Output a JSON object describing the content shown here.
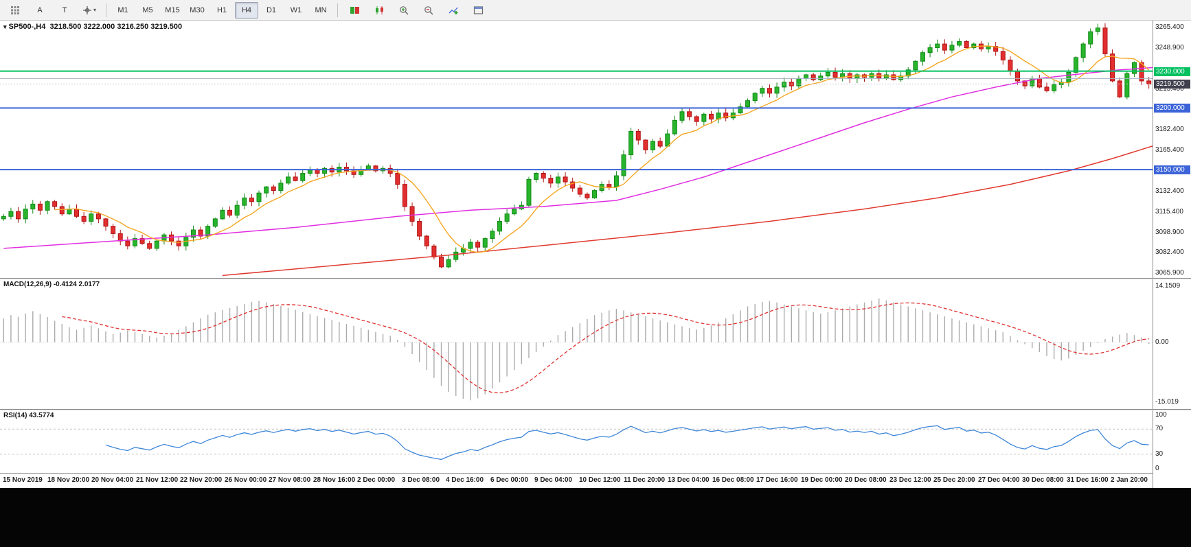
{
  "toolbar": {
    "buttons": {
      "a_label": "A",
      "t_label": "T"
    },
    "timeframes": [
      "M1",
      "M5",
      "M15",
      "M30",
      "H1",
      "H4",
      "D1",
      "W1",
      "MN"
    ],
    "active_timeframe": "H4",
    "icons": [
      "grid-icon",
      "cursor-arrow-icon",
      "text-icon",
      "crosshair-icon",
      "chevron-down-icon",
      "new-order-icon",
      "chart-candles-icon",
      "zoom-in-icon",
      "zoom-out-icon",
      "indicators-icon",
      "templates-icon"
    ]
  },
  "chart": {
    "title_symbol": "SP500-,H4",
    "title_ohlc": "3218.500 3222.000 3216.250 3219.500"
  },
  "chart_data": {
    "type": "candlestick",
    "symbol": "SP500-",
    "timeframe": "H4",
    "main": {
      "price_min": 3062,
      "price_max": 3271,
      "axis_ticks": [
        3265.4,
        3248.9,
        3215.4,
        3182.4,
        3165.4,
        3132.4,
        3115.4,
        3098.9,
        3082.4,
        3065.9
      ],
      "levels": [
        {
          "price": 3230.0,
          "label": "3230.000",
          "color": "#00c060",
          "width": 2
        },
        {
          "price": 3224.0,
          "label": "",
          "color": "#a7b4c4",
          "width": 1
        },
        {
          "price": 3219.5,
          "label": "3219.500",
          "color": "#c9ccd6",
          "width": 1,
          "style": "dotted",
          "label_bg": "#3f3f4d"
        },
        {
          "price": 3200.0,
          "label": "3200.000",
          "color": "#3c64d8",
          "width": 2
        },
        {
          "price": 3150.0,
          "label": "3150.000",
          "color": "#3c64d8",
          "width": 2
        }
      ],
      "closes": [
        3112,
        3116,
        3110,
        3118,
        3122,
        3117,
        3124,
        3120,
        3114,
        3118,
        3112,
        3108,
        3114,
        3110,
        3104,
        3098,
        3092,
        3088,
        3094,
        3090,
        3086,
        3092,
        3097,
        3092,
        3088,
        3095,
        3101,
        3096,
        3104,
        3110,
        3117,
        3113,
        3121,
        3127,
        3124,
        3131,
        3136,
        3133,
        3139,
        3144,
        3141,
        3147,
        3150,
        3147,
        3151,
        3148,
        3152,
        3149,
        3146,
        3150,
        3153,
        3149,
        3151,
        3147,
        3138,
        3120,
        3108,
        3096,
        3088,
        3079,
        3071,
        3077,
        3083,
        3086,
        3091,
        3087,
        3094,
        3100,
        3108,
        3114,
        3118,
        3121,
        3142,
        3147,
        3143,
        3139,
        3144,
        3140,
        3135,
        3130,
        3127,
        3133,
        3138,
        3136,
        3145,
        3162,
        3181,
        3174,
        3166,
        3173,
        3169,
        3179,
        3190,
        3197,
        3193,
        3189,
        3195,
        3191,
        3196,
        3192,
        3196,
        3201,
        3206,
        3212,
        3216,
        3212,
        3217,
        3221,
        3218,
        3224,
        3227,
        3223,
        3226,
        3229,
        3225,
        3228,
        3224,
        3227,
        3225,
        3228,
        3224,
        3227,
        3223,
        3226,
        3231,
        3238,
        3245,
        3249,
        3252,
        3247,
        3251,
        3254,
        3249,
        3252,
        3248,
        3250,
        3246,
        3239,
        3230,
        3222,
        3218,
        3224,
        3217,
        3214,
        3219,
        3221,
        3229,
        3241,
        3252,
        3262,
        3265,
        3244,
        3222,
        3209,
        3228,
        3237,
        3222,
        3219.5
      ],
      "ma_mid_points": [
        [
          0,
          3086
        ],
        [
          15,
          3092
        ],
        [
          28,
          3097
        ],
        [
          40,
          3103
        ],
        [
          54,
          3112
        ],
        [
          64,
          3117
        ],
        [
          74,
          3120
        ],
        [
          84,
          3125
        ],
        [
          90,
          3134
        ],
        [
          96,
          3144
        ],
        [
          100,
          3152
        ],
        [
          106,
          3164
        ],
        [
          112,
          3176
        ],
        [
          118,
          3188
        ],
        [
          124,
          3199
        ],
        [
          130,
          3209
        ],
        [
          136,
          3217
        ],
        [
          142,
          3224
        ],
        [
          148,
          3228
        ],
        [
          153,
          3231
        ],
        [
          158,
          3233
        ]
      ],
      "ma_slow_points": [
        [
          30,
          3064
        ],
        [
          45,
          3072
        ],
        [
          60,
          3080
        ],
        [
          75,
          3089
        ],
        [
          90,
          3098
        ],
        [
          105,
          3108
        ],
        [
          118,
          3118
        ],
        [
          128,
          3127
        ],
        [
          138,
          3138
        ],
        [
          146,
          3149
        ],
        [
          152,
          3159
        ],
        [
          158,
          3170
        ]
      ]
    },
    "macd": {
      "label": "MACD(12,26,9)",
      "values_text": "-0.4124 2.0177",
      "axis_labels": [
        "14.1509",
        "0.00",
        "-15.019"
      ],
      "axis_values": [
        14.1509,
        0,
        -15.019
      ],
      "range": [
        -16.8,
        15.8
      ],
      "hist": [
        6.0,
        6.8,
        6.4,
        7.2,
        7.8,
        7.1,
        6.3,
        5.4,
        4.6,
        3.8,
        3.1,
        3.6,
        4.2,
        3.5,
        2.7,
        2.1,
        2.4,
        3.0,
        2.6,
        2.1,
        1.6,
        1.2,
        1.6,
        2.2,
        3.1,
        4.0,
        5.0,
        6.0,
        6.9,
        7.5,
        8.1,
        8.6,
        9.1,
        9.6,
        10.1,
        10.4,
        10.0,
        9.6,
        9.1,
        8.6,
        8.1,
        7.6,
        7.1,
        6.6,
        6.1,
        5.6,
        5.1,
        4.6,
        4.1,
        3.6,
        3.1,
        2.6,
        2.1,
        1.6,
        0.6,
        -1.2,
        -3.0,
        -5.0,
        -7.0,
        -9.0,
        -11.0,
        -12.5,
        -13.5,
        -14.2,
        -14.6,
        -14.1,
        -13.1,
        -11.6,
        -10.1,
        -8.6,
        -7.0,
        -5.5,
        -4.0,
        -2.5,
        -1.1,
        0.4,
        1.8,
        2.8,
        3.8,
        4.8,
        5.8,
        6.8,
        7.4,
        8.0,
        8.4,
        8.0,
        7.5,
        7.0,
        6.5,
        6.0,
        5.5,
        5.0,
        4.5,
        4.0,
        3.6,
        3.2,
        3.6,
        4.2,
        5.0,
        6.0,
        7.0,
        8.0,
        9.0,
        9.6,
        10.1,
        10.4,
        10.0,
        9.5,
        9.0,
        8.5,
        8.0,
        7.6,
        7.2,
        7.6,
        8.0,
        8.5,
        9.0,
        9.5,
        10.0,
        10.5,
        11.0,
        10.5,
        10.0,
        9.5,
        9.0,
        8.5,
        8.0,
        7.5,
        7.0,
        6.5,
        6.0,
        5.5,
        5.0,
        4.5,
        4.0,
        3.5,
        3.0,
        2.5,
        1.5,
        0.5,
        -0.5,
        -1.5,
        -2.5,
        -3.5,
        -4.2,
        -4.6,
        -4.1,
        -3.2,
        -2.2,
        -1.2,
        -0.2,
        0.8,
        1.4,
        1.9,
        2.3,
        1.8,
        1.2,
        -0.4
      ]
    },
    "rsi": {
      "label": "RSI(14)",
      "value_text": "43.5774",
      "period": 14,
      "levels": [
        70,
        30
      ],
      "axis": [
        100,
        70,
        30,
        0
      ],
      "range": [
        0,
        100
      ]
    },
    "time_labels": [
      "15 Nov 2019",
      "18 Nov 20:00",
      "20 Nov 04:00",
      "21 Nov 12:00",
      "22 Nov 20:00",
      "26 Nov 00:00",
      "27 Nov 08:00",
      "28 Nov 16:00",
      "2 Dec 00:00",
      "3 Dec 08:00",
      "4 Dec 16:00",
      "6 Dec 00:00",
      "9 Dec 04:00",
      "10 Dec 12:00",
      "11 Dec 20:00",
      "13 Dec 04:00",
      "16 Dec 08:00",
      "17 Dec 16:00",
      "19 Dec 00:00",
      "20 Dec 08:00",
      "23 Dec 12:00",
      "25 Dec 20:00",
      "27 Dec 04:00",
      "30 Dec 08:00",
      "31 Dec 16:00",
      "2 Jan 20:00"
    ]
  }
}
